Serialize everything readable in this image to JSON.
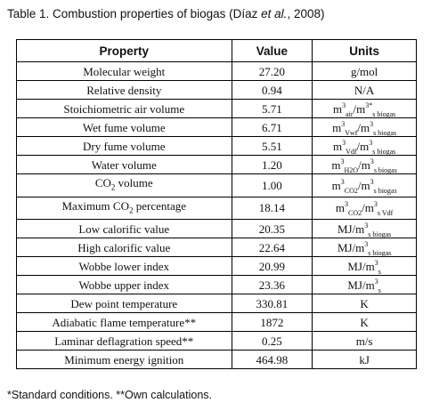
{
  "caption": {
    "prefix": "Table 1. Combustion properties of biogas (Díaz ",
    "et_al": "et al.",
    "suffix": ", 2008)"
  },
  "table": {
    "headers": [
      "Property",
      "Value",
      "Units"
    ],
    "rows": [
      {
        "property": "Molecular weight",
        "value": "27.20",
        "unit": [
          {
            "t": "g/mol"
          }
        ]
      },
      {
        "property": "Relative density",
        "value": "0.94",
        "unit": [
          {
            "t": "N/A"
          }
        ]
      },
      {
        "property": "Stoichiometric air volume",
        "value": "5.71",
        "unit": [
          {
            "t": "m"
          },
          {
            "sup": "3"
          },
          {
            "sub": "air"
          },
          {
            "t": "/m"
          },
          {
            "sup": "3*"
          },
          {
            "sub": "s biogas"
          }
        ]
      },
      {
        "property": "Wet fume volume",
        "value": "6.71",
        "unit": [
          {
            "t": "m"
          },
          {
            "sup": "3"
          },
          {
            "sub": "Vwf"
          },
          {
            "t": "/m"
          },
          {
            "sup": "3"
          },
          {
            "sub": "s biogas"
          }
        ]
      },
      {
        "property": "Dry fume volume",
        "value": "5.51",
        "unit": [
          {
            "t": "m"
          },
          {
            "sup": "3"
          },
          {
            "sub": "Vdf"
          },
          {
            "t": "/m"
          },
          {
            "sup": "3"
          },
          {
            "sub": "s biogas"
          }
        ]
      },
      {
        "property": "Water volume",
        "value": "1.20",
        "unit": [
          {
            "t": "m"
          },
          {
            "sup": "3"
          },
          {
            "sub": "H2O"
          },
          {
            "t": "/m"
          },
          {
            "sup": "3"
          },
          {
            "sub": "s biogas"
          }
        ]
      },
      {
        "property": "CO",
        "property_sub": "2",
        "property_rest": " volume",
        "value": "1.00",
        "unit": [
          {
            "t": "m"
          },
          {
            "sup": "3"
          },
          {
            "sub": "CO2"
          },
          {
            "t": "/m"
          },
          {
            "sup": "3"
          },
          {
            "sub": "s biogas"
          }
        ]
      },
      {
        "property": "Maximum CO",
        "property_sub": "2",
        "property_rest": " percentage",
        "value": "18.14",
        "unit": [
          {
            "t": "m"
          },
          {
            "sup": "3"
          },
          {
            "sub": "CO2"
          },
          {
            "t": "/m"
          },
          {
            "sup": "3"
          },
          {
            "sub": "s Vdf"
          }
        ]
      },
      {
        "property": "Low calorific value",
        "value": "20.35",
        "unit": [
          {
            "t": "MJ/m"
          },
          {
            "sup": "3"
          },
          {
            "sub": "s biogas"
          }
        ]
      },
      {
        "property": "High calorific value",
        "value": "22.64",
        "unit": [
          {
            "t": "MJ/m"
          },
          {
            "sup": "3"
          },
          {
            "sub": "s biogas"
          }
        ]
      },
      {
        "property": "Wobbe lower index",
        "value": "20.99",
        "unit": [
          {
            "t": "MJ/m"
          },
          {
            "sup": "3"
          },
          {
            "sub": "s"
          }
        ]
      },
      {
        "property": "Wobbe upper index",
        "value": "23.36",
        "unit": [
          {
            "t": "MJ/m"
          },
          {
            "sup": "3"
          },
          {
            "sub": "s"
          }
        ]
      },
      {
        "property": "Dew point temperature",
        "value": "330.81",
        "unit": [
          {
            "t": "K"
          }
        ]
      },
      {
        "property": "Adiabatic flame temperature**",
        "value": "1872",
        "unit": [
          {
            "t": "K"
          }
        ]
      },
      {
        "property": "Laminar deflagration speed**",
        "value": "0.25",
        "unit": [
          {
            "t": "m/s"
          }
        ]
      },
      {
        "property": "Minimum energy ignition",
        "value": "464.98",
        "unit": [
          {
            "t": "kJ"
          }
        ]
      }
    ]
  },
  "footnote": "*Standard conditions. **Own calculations."
}
